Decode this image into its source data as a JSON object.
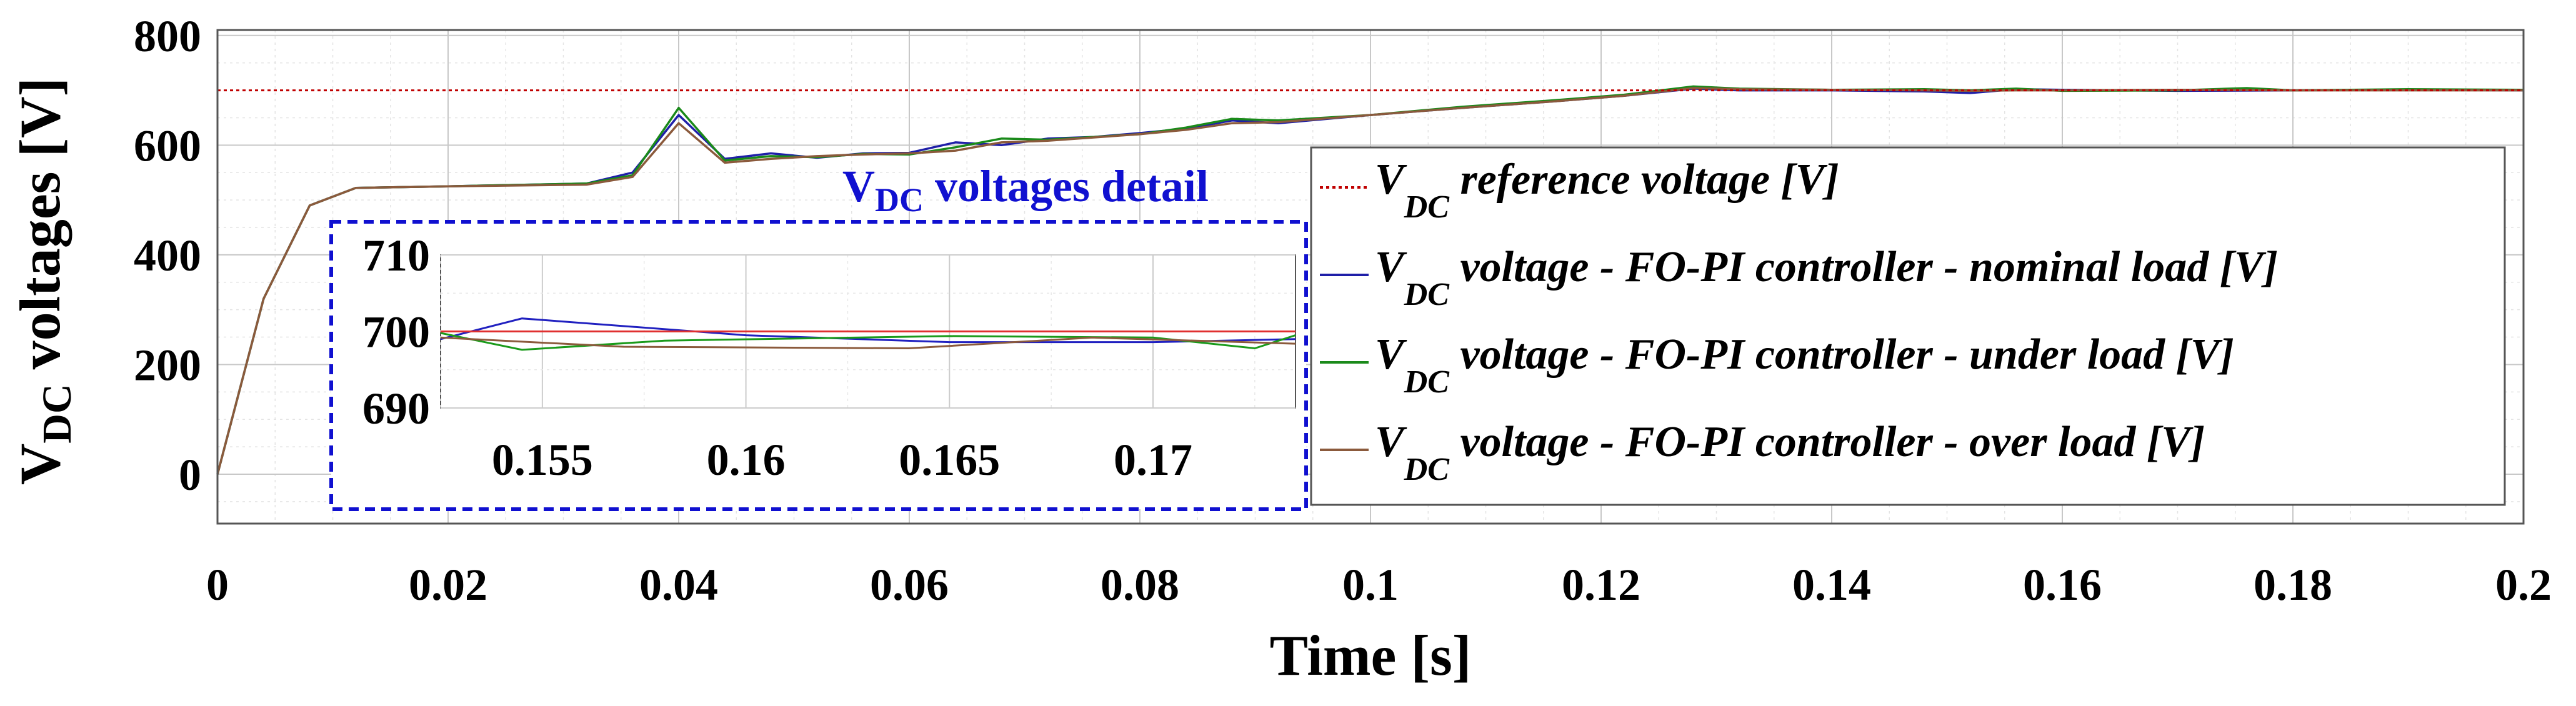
{
  "chart_data": {
    "type": "line",
    "xlabel": "Time [s]",
    "ylabel_main": "V",
    "ylabel_sub": "DC",
    "ylabel_rest": " voltages [V]",
    "xlim": [
      0,
      0.2
    ],
    "ylim": [
      -90,
      810
    ],
    "x_ticks": [
      0,
      0.02,
      0.04,
      0.06,
      0.08,
      0.1,
      0.12,
      0.14,
      0.16,
      0.18,
      0.2
    ],
    "x_tick_labels": [
      "0",
      "0.02",
      "0.04",
      "0.06",
      "0.08",
      "0.1",
      "0.12",
      "0.14",
      "0.16",
      "0.18",
      "0.2"
    ],
    "y_ticks": [
      0,
      200,
      400,
      600,
      800
    ],
    "y_tick_labels": [
      "0",
      "200",
      "400",
      "600",
      "800"
    ],
    "grid": true,
    "legend_position": "right-center",
    "series": [
      {
        "name": "reference",
        "legend_main": "V",
        "legend_sub": "DC",
        "legend_text": " reference voltage [V]",
        "color": "#c00000",
        "dashed": true,
        "x": [
          0,
          0.2
        ],
        "y": [
          700,
          700
        ]
      },
      {
        "name": "nominal",
        "legend_main": "V",
        "legend_sub": "DC",
        "legend_text": " voltage - FO-PI controller - nominal load  [V]",
        "color": "#1f1fa8",
        "dashed": false,
        "x": [
          0,
          0.004,
          0.008,
          0.012,
          0.02,
          0.032,
          0.036,
          0.04,
          0.044,
          0.048,
          0.052,
          0.056,
          0.06,
          0.064,
          0.068,
          0.072,
          0.076,
          0.08,
          0.084,
          0.088,
          0.092,
          0.1,
          0.108,
          0.116,
          0.122,
          0.128,
          0.132,
          0.14,
          0.148,
          0.152,
          0.156,
          0.16,
          0.17,
          0.18,
          0.19,
          0.2
        ],
        "y": [
          0,
          320,
          490,
          522,
          525,
          530,
          550,
          655,
          575,
          585,
          577,
          585,
          586,
          605,
          600,
          612,
          615,
          622,
          630,
          645,
          640,
          655,
          668,
          680,
          690,
          703,
          700,
          700,
          698,
          695,
          702,
          701,
          699,
          700,
          701,
          700
        ]
      },
      {
        "name": "under",
        "legend_main": "V",
        "legend_sub": "DC",
        "legend_text": " voltage - FO-PI controller - under load  [V]",
        "color": "#1a8a1a",
        "dashed": false,
        "x": [
          0,
          0.004,
          0.008,
          0.012,
          0.02,
          0.032,
          0.036,
          0.04,
          0.044,
          0.048,
          0.052,
          0.056,
          0.06,
          0.064,
          0.068,
          0.072,
          0.076,
          0.08,
          0.084,
          0.088,
          0.092,
          0.1,
          0.108,
          0.116,
          0.122,
          0.128,
          0.132,
          0.14,
          0.148,
          0.152,
          0.156,
          0.16,
          0.17,
          0.176,
          0.18,
          0.19,
          0.2
        ],
        "y": [
          0,
          320,
          490,
          522,
          525,
          530,
          545,
          668,
          572,
          580,
          578,
          584,
          583,
          596,
          612,
          610,
          615,
          620,
          632,
          648,
          645,
          655,
          670,
          682,
          692,
          707,
          703,
          701,
          702,
          700,
          703,
          699,
          700,
          704,
          700,
          702,
          701
        ]
      },
      {
        "name": "over",
        "legend_main": "V",
        "legend_sub": "DC",
        "legend_text": " voltage - FO-PI controller - over load  [V]",
        "color": "#8b5a3c",
        "dashed": false,
        "x": [
          0,
          0.004,
          0.008,
          0.012,
          0.02,
          0.032,
          0.036,
          0.04,
          0.044,
          0.048,
          0.052,
          0.056,
          0.06,
          0.064,
          0.068,
          0.072,
          0.076,
          0.08,
          0.084,
          0.088,
          0.092,
          0.1,
          0.108,
          0.116,
          0.122,
          0.128,
          0.132,
          0.14,
          0.148,
          0.152,
          0.156,
          0.16,
          0.17,
          0.18,
          0.19,
          0.2
        ],
        "y": [
          0,
          320,
          490,
          522,
          525,
          528,
          542,
          640,
          568,
          575,
          580,
          583,
          585,
          590,
          605,
          608,
          614,
          620,
          628,
          640,
          642,
          655,
          668,
          680,
          690,
          704,
          702,
          701,
          700,
          699,
          700,
          700,
          701,
          700,
          700,
          700
        ]
      }
    ],
    "inset": {
      "title_main": "V",
      "title_sub": "DC",
      "title_rest": " voltages detail",
      "xlim": [
        0.1525,
        0.1735
      ],
      "ylim": [
        690,
        710
      ],
      "x_ticks": [
        0.155,
        0.16,
        0.165,
        0.17
      ],
      "x_tick_labels": [
        "0.155",
        "0.16",
        "0.165",
        "0.17"
      ],
      "y_ticks": [
        690,
        700,
        710
      ],
      "y_tick_labels": [
        "690",
        "700",
        "710"
      ],
      "series": [
        {
          "name": "reference",
          "color": "#e03030",
          "x": [
            0.1525,
            0.1735
          ],
          "y": [
            700,
            700
          ]
        },
        {
          "name": "nominal",
          "color": "#2020c0",
          "x": [
            0.1525,
            0.1545,
            0.16,
            0.165,
            0.17,
            0.1735
          ],
          "y": [
            699,
            701.7,
            699.5,
            698.6,
            698.6,
            699
          ]
        },
        {
          "name": "under",
          "color": "#1a9a1a",
          "x": [
            0.1525,
            0.1545,
            0.158,
            0.165,
            0.17,
            0.1725,
            0.1735
          ],
          "y": [
            699.8,
            697.6,
            698.8,
            699.4,
            699.2,
            697.8,
            699.5
          ]
        },
        {
          "name": "over",
          "color": "#8b5a3c",
          "x": [
            0.1525,
            0.157,
            0.164,
            0.1685,
            0.1735
          ],
          "y": [
            699.2,
            698,
            697.8,
            699.2,
            698.4
          ]
        }
      ]
    }
  }
}
